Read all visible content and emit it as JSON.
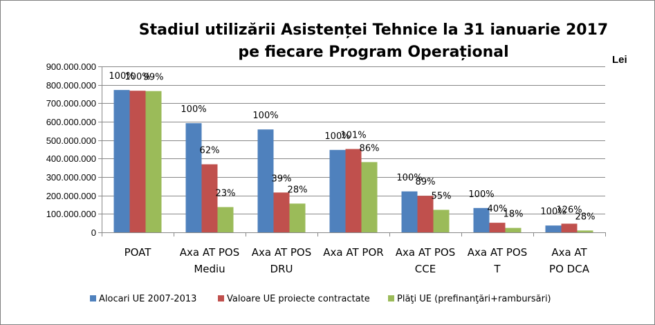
{
  "chart_data": {
    "type": "bar",
    "title_line1": "Stadiul utilizării Asistenței Tehnice la 31 ianuarie 2017",
    "title_line2": "pe fiecare Program Operațional",
    "unit_label": "Lei",
    "categories": [
      [
        "POAT"
      ],
      [
        "Axa AT POS",
        "Mediu"
      ],
      [
        "Axa AT POS",
        "DRU"
      ],
      [
        "Axa AT POR"
      ],
      [
        "Axa AT POS",
        "CCE"
      ],
      [
        "Axa AT POS",
        "T"
      ],
      [
        "Axa AT",
        "PO DCA"
      ]
    ],
    "ylim": [
      0,
      900000000
    ],
    "yticks": [
      0,
      100000000,
      200000000,
      300000000,
      400000000,
      500000000,
      600000000,
      700000000,
      800000000,
      900000000
    ],
    "ytick_labels": [
      "0",
      "100.000.000",
      "200.000.000",
      "300.000.000",
      "400.000.000",
      "500.000.000",
      "600.000.000",
      "700.000.000",
      "800.000.000",
      "900.000.000"
    ],
    "grid": true,
    "legend_position": "bottom",
    "series": [
      {
        "name": "Alocari UE 2007-2013",
        "color": "#4f81bd",
        "values": [
          772000000,
          592000000,
          558000000,
          447000000,
          222000000,
          132000000,
          37000000
        ],
        "labels": [
          "100%",
          "100%",
          "100%",
          "100%",
          "100%",
          "100%",
          "100%"
        ]
      },
      {
        "name": "Valoare UE proiecte contractate",
        "color": "#c0504d",
        "values": [
          768000000,
          369000000,
          216000000,
          452000000,
          198000000,
          52000000,
          47000000
        ],
        "labels": [
          "100%",
          "62%",
          "39%",
          "101%",
          "89%",
          "40%",
          "126%"
        ]
      },
      {
        "name": "Plăţi UE (prefinanţări+rambursări)",
        "color": "#9bbb59",
        "values": [
          766000000,
          137000000,
          156000000,
          381000000,
          122000000,
          24000000,
          10000000
        ],
        "labels": [
          "99%",
          "23%",
          "28%",
          "86%",
          "55%",
          "18%",
          "28%"
        ]
      }
    ]
  }
}
